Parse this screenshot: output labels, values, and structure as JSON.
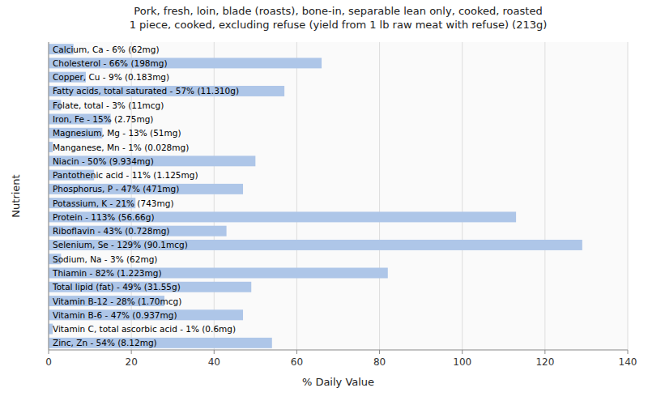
{
  "chart_data": {
    "type": "bar",
    "orientation": "horizontal",
    "title": "Pork, fresh, loin, blade (roasts), bone-in, separable lean only, cooked, roasted\n1 piece, cooked, excluding refuse (yield from 1 lb raw meat with refuse) (213g)",
    "xlabel": "% Daily Value",
    "ylabel": "Nutrient",
    "categories": [
      "Calcium, Ca - 6% (62mg)",
      "Cholesterol - 66% (198mg)",
      "Copper, Cu - 9% (0.183mg)",
      "Fatty acids, total saturated - 57% (11.310g)",
      "Folate, total - 3% (11mcg)",
      "Iron, Fe - 15% (2.75mg)",
      "Magnesium, Mg - 13% (51mg)",
      "Manganese, Mn - 1% (0.028mg)",
      "Niacin - 50% (9.934mg)",
      "Pantothenic acid - 11% (1.125mg)",
      "Phosphorus, P - 47% (471mg)",
      "Potassium, K - 21% (743mg)",
      "Protein - 113% (56.66g)",
      "Riboflavin - 43% (0.728mg)",
      "Selenium, Se - 129% (90.1mcg)",
      "Sodium, Na - 3% (62mg)",
      "Thiamin - 82% (1.223mg)",
      "Total lipid (fat) - 49% (31.55g)",
      "Vitamin B-12 - 28% (1.70mcg)",
      "Vitamin B-6 - 47% (0.937mg)",
      "Vitamin C, total ascorbic acid - 1% (0.6mg)",
      "Zinc, Zn - 54% (8.12mg)"
    ],
    "values": [
      6,
      66,
      9,
      57,
      3,
      15,
      13,
      1,
      50,
      11,
      47,
      21,
      113,
      43,
      129,
      3,
      82,
      49,
      28,
      47,
      1,
      54
    ],
    "color": "#aec6e8",
    "xlim": [
      0,
      140
    ],
    "xticks": [
      0,
      20,
      40,
      60,
      80,
      100,
      120,
      140
    ],
    "grid": true
  }
}
